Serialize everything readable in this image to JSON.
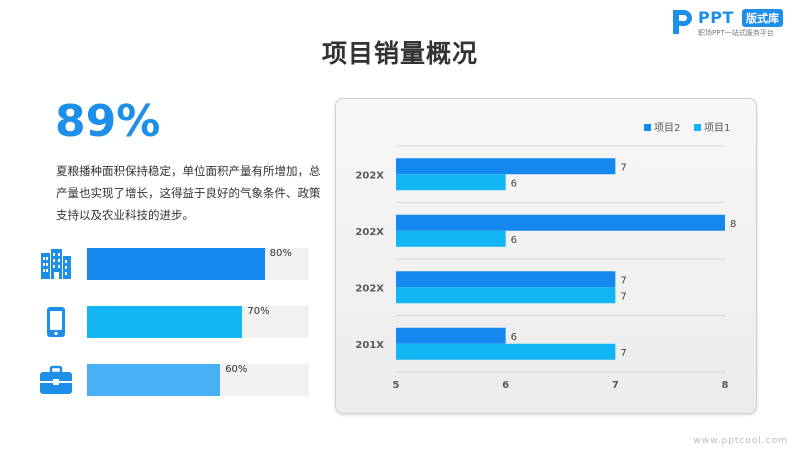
{
  "logo": {
    "brand": "PPT",
    "badge": "版式库",
    "tagline": "职场PPT一站式服务平台"
  },
  "title": "项目销量概况",
  "highlight": {
    "value": "89%",
    "description": "夏粮播种面积保持稳定，单位面积产量有所增加，总产量也实现了增长，这得益于良好的气象条件、政策支持以及农业科技的进步。"
  },
  "stats": [
    {
      "icon": "office-building-icon",
      "percent": 80,
      "label": "80%",
      "color": "#1488ef"
    },
    {
      "icon": "tablet-icon",
      "percent": 70,
      "label": "70%",
      "color": "#13b5f2"
    },
    {
      "icon": "briefcase-icon",
      "percent": 60,
      "label": "60%",
      "color": "#4ab0f5"
    }
  ],
  "colors": {
    "accent": "#1e8fe8",
    "series2": "#1488ef",
    "series1": "#13b5f2"
  },
  "chart_data": {
    "type": "bar",
    "orientation": "horizontal",
    "categories": [
      "202X",
      "202X",
      "202X",
      "201X"
    ],
    "series": [
      {
        "name": "项目2",
        "values": [
          7,
          8,
          7,
          6
        ],
        "color": "#1488ef"
      },
      {
        "name": "项目1",
        "values": [
          6,
          6,
          7,
          7
        ],
        "color": "#13b5f2"
      }
    ],
    "xlim": [
      5,
      8
    ],
    "xticks": [
      "5",
      "6",
      "7",
      "8"
    ],
    "legend": "top-right",
    "grid": "horizontal"
  },
  "watermark": "www.pptcool.com"
}
